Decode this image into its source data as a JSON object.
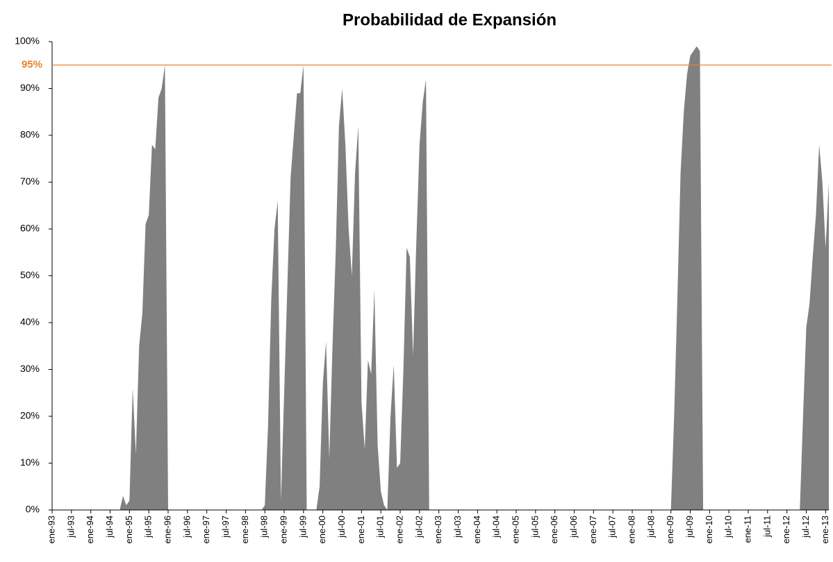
{
  "chart_data": {
    "type": "area",
    "title": "Probabilidad de Expansión",
    "color": "#808080",
    "categories": [
      "ene-93",
      null,
      null,
      null,
      null,
      null,
      "jul-93",
      null,
      null,
      null,
      null,
      null,
      "ene-94",
      null,
      null,
      null,
      null,
      null,
      "jul-94",
      null,
      null,
      null,
      null,
      null,
      "ene-95",
      null,
      null,
      null,
      null,
      null,
      "jul-95",
      null,
      null,
      null,
      null,
      null,
      "ene-96",
      null,
      null,
      null,
      null,
      null,
      "jul-96",
      null,
      null,
      null,
      null,
      null,
      "ene-97",
      null,
      null,
      null,
      null,
      null,
      "jul-97",
      null,
      null,
      null,
      null,
      null,
      "ene-98",
      null,
      null,
      null,
      null,
      null,
      "jul-98",
      null,
      null,
      null,
      null,
      null,
      "ene-99",
      null,
      null,
      null,
      null,
      null,
      "jul-99",
      null,
      null,
      null,
      null,
      null,
      "ene-00",
      null,
      null,
      null,
      null,
      null,
      "jul-00",
      null,
      null,
      null,
      null,
      null,
      "ene-01",
      null,
      null,
      null,
      null,
      null,
      "jul-01",
      null,
      null,
      null,
      null,
      null,
      "ene-02",
      null,
      null,
      null,
      null,
      null,
      "jul-02",
      null,
      null,
      null,
      null,
      null,
      "ene-03",
      null,
      null,
      null,
      null,
      null,
      "jul-03",
      null,
      null,
      null,
      null,
      null,
      "ene-04",
      null,
      null,
      null,
      null,
      null,
      "jul-04",
      null,
      null,
      null,
      null,
      null,
      "ene-05",
      null,
      null,
      null,
      null,
      null,
      "jul-05",
      null,
      null,
      null,
      null,
      null,
      "ene-06",
      null,
      null,
      null,
      null,
      null,
      "jul-06",
      null,
      null,
      null,
      null,
      null,
      "ene-07",
      null,
      null,
      null,
      null,
      null,
      "jul-07",
      null,
      null,
      null,
      null,
      null,
      "ene-08",
      null,
      null,
      null,
      null,
      null,
      "jul-08",
      null,
      null,
      null,
      null,
      null,
      "ene-09",
      null,
      null,
      null,
      null,
      null,
      "jul-09",
      null,
      null,
      null,
      null,
      null,
      "ene-10",
      null,
      null,
      null,
      null,
      null,
      "jul-10",
      null,
      null,
      null,
      null,
      null,
      "ene-11",
      null,
      null,
      null,
      null,
      null,
      "jul-11",
      null,
      null,
      null,
      null,
      null,
      "ene-12",
      null,
      null,
      null,
      null,
      null,
      "jul-12",
      null,
      null,
      null,
      null,
      null,
      "ene-13",
      null
    ],
    "values": [
      0,
      0,
      0,
      0,
      0,
      0,
      0,
      0,
      0,
      0,
      0,
      0,
      0,
      0,
      0,
      0,
      0,
      0,
      0,
      0,
      0,
      0,
      3,
      1,
      2,
      26,
      12,
      35,
      42,
      61,
      63,
      78,
      77,
      88,
      90,
      95,
      0,
      0,
      0,
      0,
      0,
      0,
      0,
      0,
      0,
      0,
      0,
      0,
      0,
      0,
      0,
      0,
      0,
      0,
      0,
      0,
      0,
      0,
      0,
      0,
      0,
      0,
      0,
      0,
      0,
      0,
      1,
      18,
      45,
      60,
      66,
      2,
      25,
      48,
      71,
      80,
      89,
      89,
      95,
      0,
      0,
      0,
      0,
      5,
      27,
      36,
      11,
      35,
      55,
      82,
      90,
      78,
      60,
      50,
      72,
      82,
      23,
      13,
      32,
      29,
      47,
      14,
      4,
      1,
      0,
      20,
      31,
      9,
      10,
      30,
      56,
      54,
      33,
      57,
      78,
      87,
      92,
      0,
      0,
      0,
      0,
      0,
      0,
      0,
      0,
      0,
      0,
      0,
      0,
      0,
      0,
      0,
      0,
      0,
      0,
      0,
      0,
      0,
      0,
      0,
      0,
      0,
      0,
      0,
      0,
      0,
      0,
      0,
      0,
      0,
      0,
      0,
      0,
      0,
      0,
      0,
      0,
      0,
      0,
      0,
      0,
      0,
      0,
      0,
      0,
      0,
      0,
      0,
      0,
      0,
      0,
      0,
      0,
      0,
      0,
      0,
      0,
      0,
      0,
      0,
      0,
      0,
      0,
      0,
      0,
      0,
      0,
      0,
      0,
      0,
      0,
      0,
      0,
      20,
      45,
      72,
      85,
      93,
      97,
      98,
      99,
      98,
      0,
      0,
      0,
      0,
      0,
      0,
      0,
      0,
      0,
      0,
      0,
      0,
      0,
      0,
      0,
      0,
      0,
      0,
      0,
      0,
      0,
      0,
      0,
      0,
      0,
      0,
      0,
      0,
      0,
      0,
      0,
      20,
      39,
      44,
      54,
      63,
      78,
      70,
      56,
      70
    ],
    "ylim": [
      0,
      100
    ],
    "yticks": [
      {
        "value": 0,
        "label": "0%"
      },
      {
        "value": 10,
        "label": "10%"
      },
      {
        "value": 20,
        "label": "20%"
      },
      {
        "value": 30,
        "label": "30%"
      },
      {
        "value": 40,
        "label": "40%"
      },
      {
        "value": 50,
        "label": "50%"
      },
      {
        "value": 60,
        "label": "60%"
      },
      {
        "value": 70,
        "label": "70%"
      },
      {
        "value": 80,
        "label": "80%"
      },
      {
        "value": 90,
        "label": "90%"
      },
      {
        "value": 100,
        "label": "100%"
      }
    ],
    "reference_line": {
      "value": 95,
      "label": "95%",
      "color": "#e8822a"
    },
    "grid": false
  }
}
